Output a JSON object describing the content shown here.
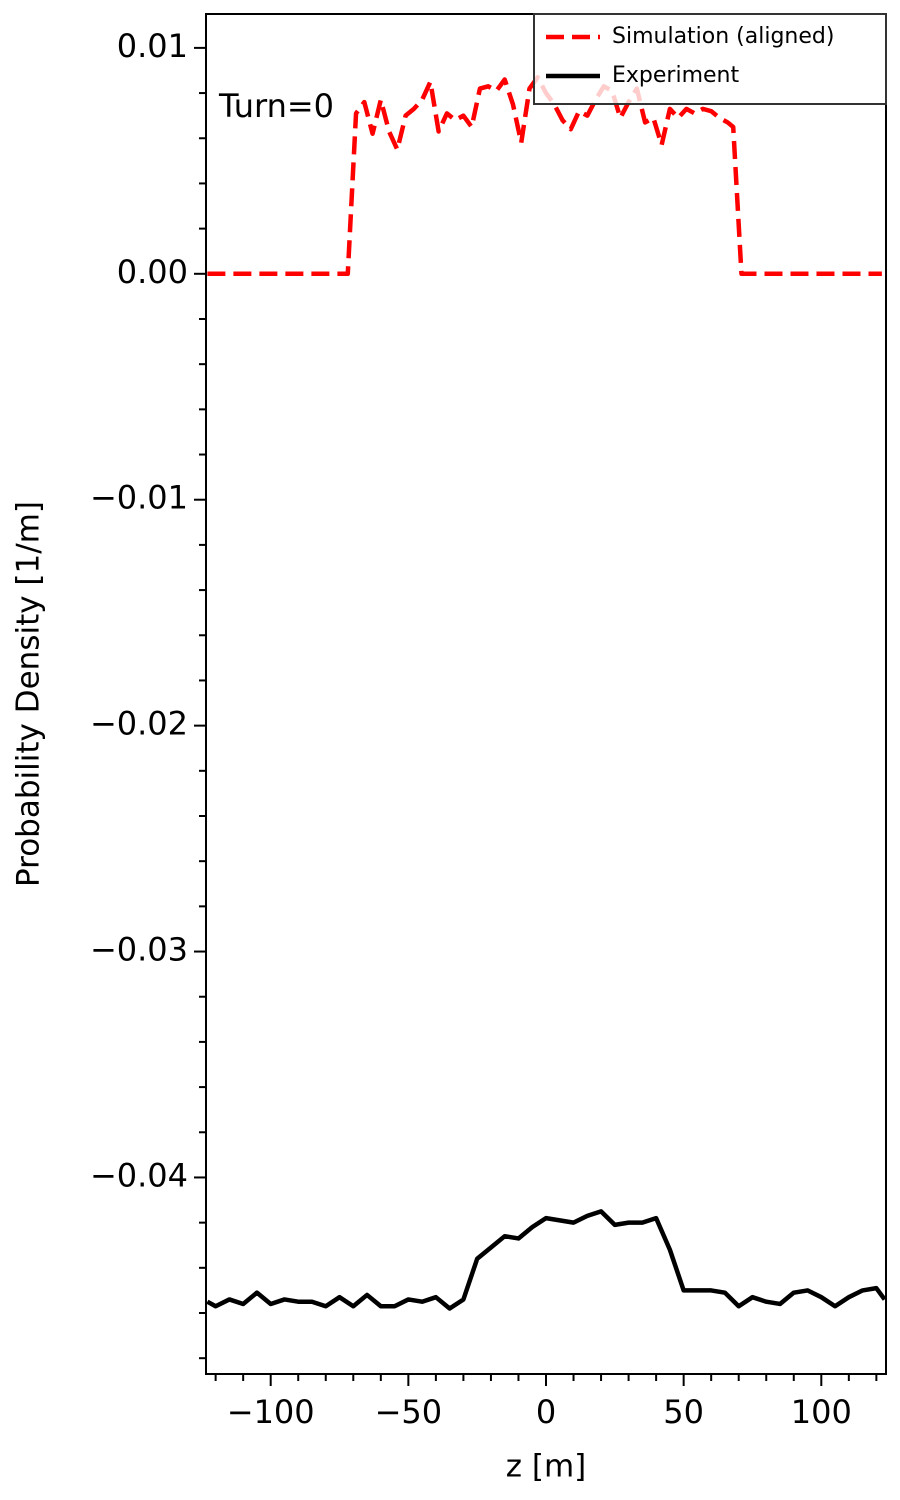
{
  "chart_data": {
    "type": "line",
    "xlabel": "z [m]",
    "ylabel": "Probability Density [1/m]",
    "annotation": "Turn=0",
    "xlim": [
      -123.5,
      123.5
    ],
    "ylim": [
      -0.0487,
      0.0115
    ],
    "xticks": [
      {
        "value": -100,
        "label": "−100"
      },
      {
        "value": -50,
        "label": "−50"
      },
      0,
      50,
      100
    ],
    "yticks": [
      {
        "value": -0.04,
        "label": "−0.04"
      },
      {
        "value": -0.03,
        "label": "−0.03"
      },
      {
        "value": -0.02,
        "label": "−0.02"
      },
      {
        "value": -0.01,
        "label": "−0.01"
      },
      {
        "value": 0,
        "label": "0.00"
      },
      0.01
    ],
    "legend": "upper right",
    "series": [
      {
        "name": "Simulation (aligned)",
        "color": "#ff0000",
        "dashed": true,
        "x": [
          -123,
          -110,
          -100,
          -90,
          -80,
          -72,
          -69,
          -66,
          -63,
          -60,
          -57,
          -54,
          -51,
          -48,
          -45,
          -42,
          -39,
          -36,
          -33,
          -30,
          -27,
          -24,
          -21,
          -18,
          -15,
          -12,
          -9,
          -6,
          -3,
          0,
          3,
          6,
          9,
          12,
          15,
          18,
          21,
          24,
          27,
          30,
          33,
          36,
          39,
          42,
          45,
          48,
          51,
          54,
          57,
          60,
          63,
          66,
          68,
          71,
          80,
          90,
          100,
          110,
          122
        ],
        "values": [
          0,
          0,
          0,
          0,
          0,
          0,
          0.0071,
          0.0076,
          0.0062,
          0.0077,
          0.0063,
          0.0055,
          0.007,
          0.0073,
          0.0077,
          0.0085,
          0.0063,
          0.0071,
          0.0068,
          0.007,
          0.0065,
          0.0082,
          0.0083,
          0.0081,
          0.0086,
          0.0075,
          0.0058,
          0.0082,
          0.0087,
          0.008,
          0.0075,
          0.0068,
          0.0064,
          0.0072,
          0.007,
          0.0077,
          0.0083,
          0.0081,
          0.0069,
          0.0076,
          0.0082,
          0.0067,
          0.0069,
          0.0057,
          0.0073,
          0.0069,
          0.0073,
          0.0071,
          0.0073,
          0.0072,
          0.0069,
          0.0067,
          0.0065,
          0,
          0,
          0,
          0,
          0,
          0
        ]
      },
      {
        "name": "Experiment",
        "color": "#000000",
        "dashed": false,
        "x": [
          -123,
          -120,
          -115,
          -110,
          -105,
          -100,
          -95,
          -90,
          -85,
          -80,
          -75,
          -70,
          -65,
          -60,
          -55,
          -50,
          -45,
          -40,
          -35,
          -30,
          -25,
          -20,
          -15,
          -10,
          -5,
          0,
          5,
          10,
          15,
          20,
          25,
          30,
          35,
          40,
          45,
          50,
          55,
          60,
          65,
          70,
          75,
          80,
          85,
          90,
          95,
          100,
          105,
          110,
          115,
          120,
          123
        ],
        "values": [
          -0.0455,
          -0.0457,
          -0.0454,
          -0.0456,
          -0.0451,
          -0.0456,
          -0.0454,
          -0.0455,
          -0.0455,
          -0.0457,
          -0.0453,
          -0.0457,
          -0.0452,
          -0.0457,
          -0.0457,
          -0.0454,
          -0.0455,
          -0.0453,
          -0.0458,
          -0.0454,
          -0.0436,
          -0.0431,
          -0.0426,
          -0.0427,
          -0.0422,
          -0.0418,
          -0.0419,
          -0.042,
          -0.0417,
          -0.0415,
          -0.0421,
          -0.042,
          -0.042,
          -0.0418,
          -0.0432,
          -0.045,
          -0.045,
          -0.045,
          -0.0451,
          -0.0457,
          -0.0453,
          -0.0455,
          -0.0456,
          -0.0451,
          -0.045,
          -0.0453,
          -0.0457,
          -0.0453,
          -0.045,
          -0.0449,
          -0.0454
        ]
      }
    ]
  }
}
